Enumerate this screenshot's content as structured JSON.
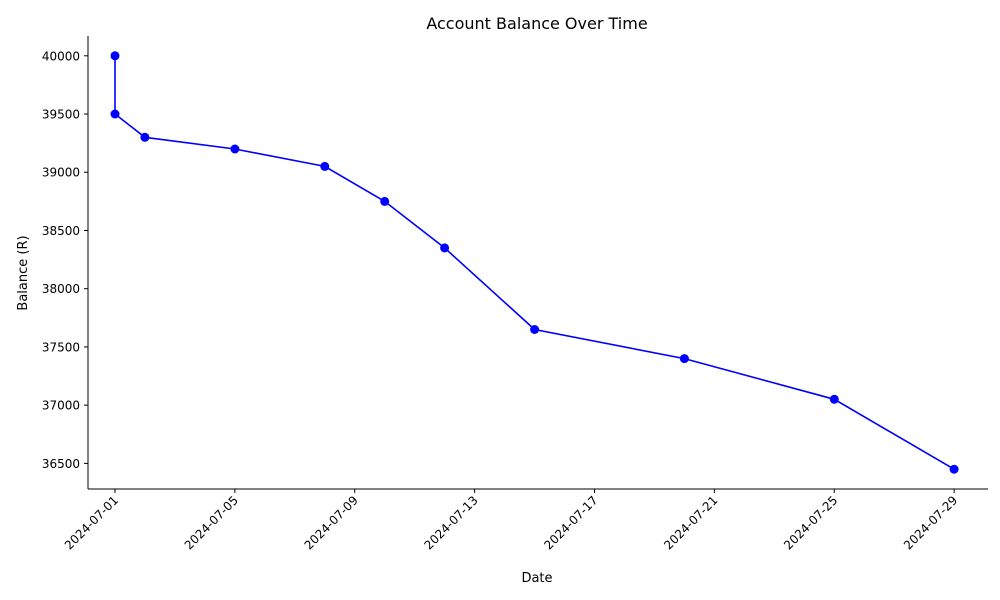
{
  "chart_data": {
    "type": "line",
    "title": "Account Balance Over Time",
    "xlabel": "Date",
    "ylabel": "Balance (R)",
    "x_type": "date",
    "xlim": [
      "2023-12-31",
      "2024-07-30"
    ],
    "ylim": [
      36280,
      40170
    ],
    "x_ticks": [
      "2024-07-01",
      "2024-07-05",
      "2024-07-09",
      "2024-07-13",
      "2024-07-17",
      "2024-07-21",
      "2024-07-25",
      "2024-07-29"
    ],
    "y_ticks": [
      36500,
      37000,
      37500,
      38000,
      38500,
      39000,
      39500,
      40000
    ],
    "grid": false,
    "series": [
      {
        "color": "#0000ff",
        "marker": "circle",
        "points": [
          {
            "x": "2024-07-01",
            "y": 40000
          },
          {
            "x": "2024-07-01",
            "y": 39500
          },
          {
            "x": "2024-07-02",
            "y": 39300
          },
          {
            "x": "2024-07-05",
            "y": 39200
          },
          {
            "x": "2024-07-08",
            "y": 39050
          },
          {
            "x": "2024-07-10",
            "y": 38750
          },
          {
            "x": "2024-07-12",
            "y": 38350
          },
          {
            "x": "2024-07-15",
            "y": 37650
          },
          {
            "x": "2024-07-20",
            "y": 37400
          },
          {
            "x": "2024-07-25",
            "y": 37050
          },
          {
            "x": "2024-07-29",
            "y": 36450
          }
        ]
      }
    ]
  }
}
